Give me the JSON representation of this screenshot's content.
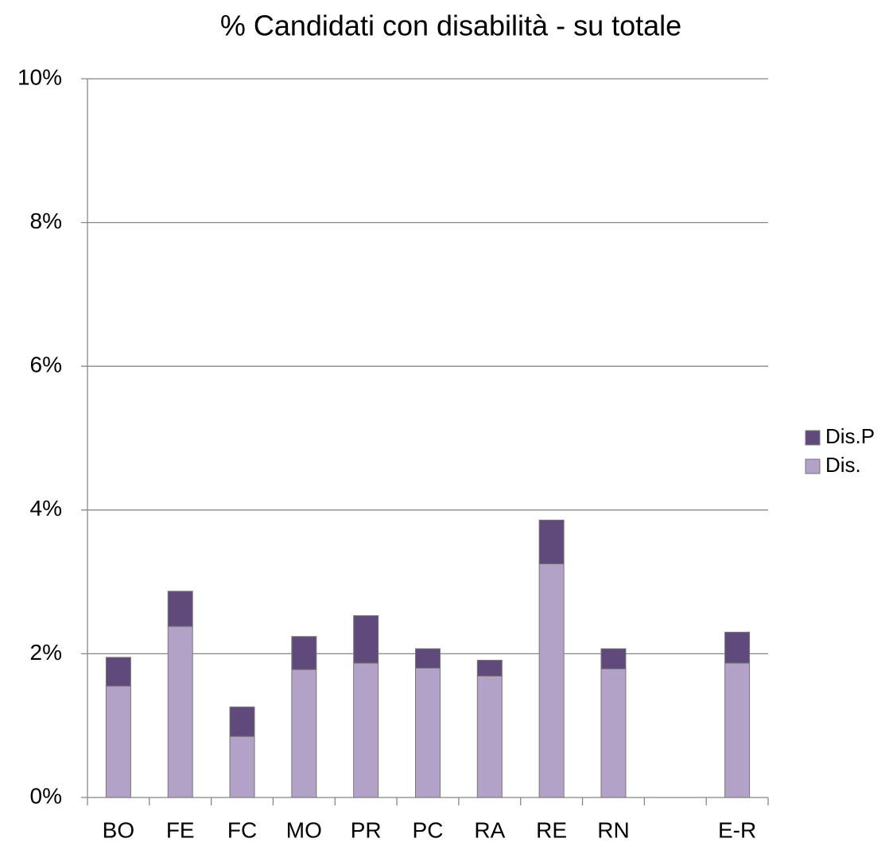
{
  "chart_data": {
    "type": "bar",
    "stacked": true,
    "title": "% Candidati con disabilità - su totale",
    "categories": [
      "BO",
      "FE",
      "FC",
      "MO",
      "PR",
      "PC",
      "RA",
      "RE",
      "RN",
      null,
      "E-R"
    ],
    "series": [
      {
        "name": "Dis.",
        "color": "#b3a2c7",
        "values": [
          1.55,
          2.38,
          0.85,
          1.78,
          1.87,
          1.8,
          1.69,
          3.25,
          1.79,
          null,
          1.87
        ]
      },
      {
        "name": "Dis.P",
        "color": "#604a7b",
        "values": [
          0.4,
          0.49,
          0.41,
          0.46,
          0.66,
          0.27,
          0.22,
          0.61,
          0.28,
          null,
          0.43
        ]
      }
    ],
    "ylim": [
      0,
      10
    ],
    "yticks": [
      {
        "value": 0,
        "label": "0%"
      },
      {
        "value": 2,
        "label": "2%"
      },
      {
        "value": 4,
        "label": "4%"
      },
      {
        "value": 6,
        "label": "6%"
      },
      {
        "value": 8,
        "label": "8%"
      },
      {
        "value": 10,
        "label": "10%"
      }
    ],
    "grid": true,
    "legend": "right"
  }
}
